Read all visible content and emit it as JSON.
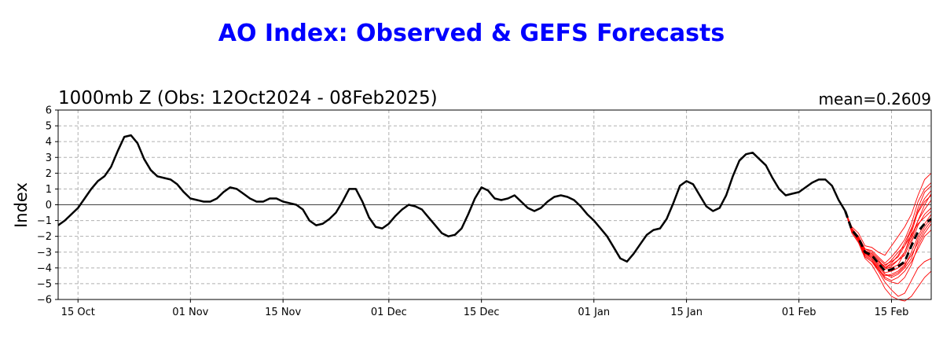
{
  "chart_data": {
    "type": "line",
    "title": "AO Index: Observed & GEFS Forecasts",
    "subtitle": "1000mb Z (Obs: 12Oct2024 - 08Feb2025)",
    "mean_label": "mean=0.2609",
    "ylabel": "Index",
    "xlabel": "",
    "ylim": [
      -6,
      6
    ],
    "yticks": [
      -6,
      -5,
      -4,
      -3,
      -2,
      -1,
      0,
      1,
      2,
      3,
      4,
      5,
      6
    ],
    "xlim": [
      "2024-10-12",
      "2025-02-21"
    ],
    "xticks": [
      {
        "date": "2024-10-15",
        "label": "15 Oct"
      },
      {
        "date": "2024-11-01",
        "label": "01 Nov"
      },
      {
        "date": "2024-11-15",
        "label": "15 Nov"
      },
      {
        "date": "2024-12-01",
        "label": "01 Dec"
      },
      {
        "date": "2024-12-15",
        "label": "15 Dec"
      },
      {
        "date": "2025-01-01",
        "label": "01 Jan"
      },
      {
        "date": "2025-01-15",
        "label": "15 Jan"
      },
      {
        "date": "2025-02-01",
        "label": "01 Feb"
      },
      {
        "date": "2025-02-15",
        "label": "15 Feb"
      }
    ],
    "grid": true,
    "colors": {
      "title": "#0000ff",
      "observed": "#000000",
      "members": "#ff0000",
      "mean": "#000000",
      "grid": "#b0b0b0"
    },
    "observed": {
      "start": "2024-10-12",
      "values": [
        -1.3,
        -1.0,
        -0.6,
        -0.2,
        0.4,
        1.0,
        1.5,
        1.8,
        2.4,
        3.4,
        4.3,
        4.4,
        3.9,
        2.9,
        2.2,
        1.8,
        1.7,
        1.6,
        1.3,
        0.8,
        0.4,
        0.3,
        0.2,
        0.2,
        0.4,
        0.8,
        1.1,
        1.0,
        0.7,
        0.4,
        0.2,
        0.2,
        0.4,
        0.4,
        0.2,
        0.1,
        0.0,
        -0.3,
        -1.0,
        -1.3,
        -1.2,
        -0.9,
        -0.5,
        0.2,
        1.0,
        1.0,
        0.2,
        -0.8,
        -1.4,
        -1.5,
        -1.2,
        -0.7,
        -0.3,
        0.0,
        -0.1,
        -0.3,
        -0.8,
        -1.3,
        -1.8,
        -2.0,
        -1.9,
        -1.5,
        -0.6,
        0.4,
        1.1,
        0.9,
        0.4,
        0.3,
        0.4,
        0.6,
        0.2,
        -0.2,
        -0.4,
        -0.2,
        0.2,
        0.5,
        0.6,
        0.5,
        0.3,
        -0.1,
        -0.6,
        -1.0,
        -1.5,
        -2.0,
        -2.7,
        -3.4,
        -3.6,
        -3.1,
        -2.5,
        -1.9,
        -1.6,
        -1.5,
        -0.9,
        0.1,
        1.2,
        1.5,
        1.3,
        0.6,
        -0.1,
        -0.4,
        -0.2,
        0.6,
        1.8,
        2.8,
        3.2,
        3.3,
        2.9,
        2.5,
        1.7,
        1.0,
        0.6,
        0.7,
        0.8,
        1.1,
        1.4,
        1.6,
        1.6,
        1.2,
        0.3,
        -0.4
      ]
    },
    "ensemble_mean": {
      "start": "2025-02-08",
      "values": [
        -0.4,
        -1.6,
        -2.1,
        -3.0,
        -3.2,
        -3.7,
        -4.2,
        -4.1,
        -3.9,
        -3.6,
        -2.6,
        -1.7,
        -1.2,
        -0.9
      ]
    },
    "members": {
      "start": "2025-02-08",
      "series": [
        [
          -0.4,
          -1.4,
          -1.8,
          -2.6,
          -2.7,
          -3.0,
          -3.2,
          -2.6,
          -2.0,
          -1.4,
          -0.6,
          0.6,
          1.6,
          2.0
        ],
        [
          -0.4,
          -1.8,
          -2.4,
          -3.4,
          -3.8,
          -4.5,
          -5.3,
          -5.8,
          -6.0,
          -6.1,
          -5.8,
          -5.2,
          -4.6,
          -4.2
        ],
        [
          -0.4,
          -1.5,
          -2.0,
          -2.8,
          -2.9,
          -3.3,
          -3.7,
          -3.3,
          -2.8,
          -2.2,
          -1.2,
          0.2,
          1.0,
          1.4
        ],
        [
          -0.4,
          -1.7,
          -2.3,
          -3.3,
          -3.6,
          -4.2,
          -4.9,
          -5.4,
          -5.8,
          -5.6,
          -4.8,
          -4.0,
          -3.6,
          -3.4
        ],
        [
          -0.4,
          -1.6,
          -2.1,
          -2.9,
          -3.1,
          -3.5,
          -4.0,
          -3.7,
          -3.2,
          -2.4,
          -1.5,
          -0.5,
          0.2,
          0.6
        ],
        [
          -0.4,
          -1.5,
          -2.2,
          -3.1,
          -3.4,
          -3.9,
          -4.4,
          -4.5,
          -4.3,
          -3.9,
          -3.0,
          -2.0,
          -1.2,
          -0.6
        ],
        [
          -0.4,
          -1.7,
          -2.0,
          -2.8,
          -3.0,
          -3.4,
          -3.8,
          -3.6,
          -3.3,
          -2.6,
          -1.6,
          -0.2,
          0.8,
          1.2
        ],
        [
          -0.4,
          -1.6,
          -2.3,
          -3.2,
          -3.5,
          -4.0,
          -4.6,
          -4.8,
          -4.6,
          -4.2,
          -3.6,
          -2.8,
          -2.0,
          -1.6
        ],
        [
          -0.4,
          -1.5,
          -2.1,
          -3.0,
          -3.3,
          -3.7,
          -4.1,
          -3.9,
          -3.5,
          -3.0,
          -2.0,
          -1.0,
          -0.3,
          0.3
        ],
        [
          -0.4,
          -1.7,
          -2.2,
          -3.1,
          -3.3,
          -3.8,
          -4.3,
          -4.2,
          -4.0,
          -3.7,
          -2.4,
          -1.3,
          -0.6,
          -0.2
        ],
        [
          -0.4,
          -1.6,
          -2.0,
          -2.9,
          -3.2,
          -3.6,
          -3.9,
          -3.5,
          -3.0,
          -2.6,
          -1.9,
          -1.2,
          -0.8,
          -0.4
        ],
        [
          -0.4,
          -1.5,
          -2.2,
          -3.2,
          -3.5,
          -4.1,
          -4.7,
          -4.9,
          -5.0,
          -4.6,
          -3.8,
          -2.6,
          -1.8,
          -1.2
        ],
        [
          -0.4,
          -1.6,
          -2.1,
          -3.0,
          -3.2,
          -3.6,
          -4.0,
          -3.8,
          -3.5,
          -3.2,
          -2.2,
          -1.0,
          0.0,
          0.7
        ],
        [
          -0.4,
          -1.7,
          -2.3,
          -3.3,
          -3.6,
          -4.1,
          -4.5,
          -4.4,
          -4.2,
          -3.8,
          -3.2,
          -2.4,
          -1.6,
          -1.0
        ],
        [
          -0.4,
          -1.5,
          -2.0,
          -2.9,
          -3.1,
          -3.5,
          -4.0,
          -4.0,
          -3.8,
          -3.0,
          -1.8,
          -0.4,
          0.4,
          0.9
        ],
        [
          -0.4,
          -1.6,
          -2.2,
          -3.1,
          -3.4,
          -3.9,
          -4.4,
          -4.6,
          -4.4,
          -4.0,
          -3.4,
          -2.2,
          -1.4,
          -0.8
        ]
      ]
    }
  }
}
